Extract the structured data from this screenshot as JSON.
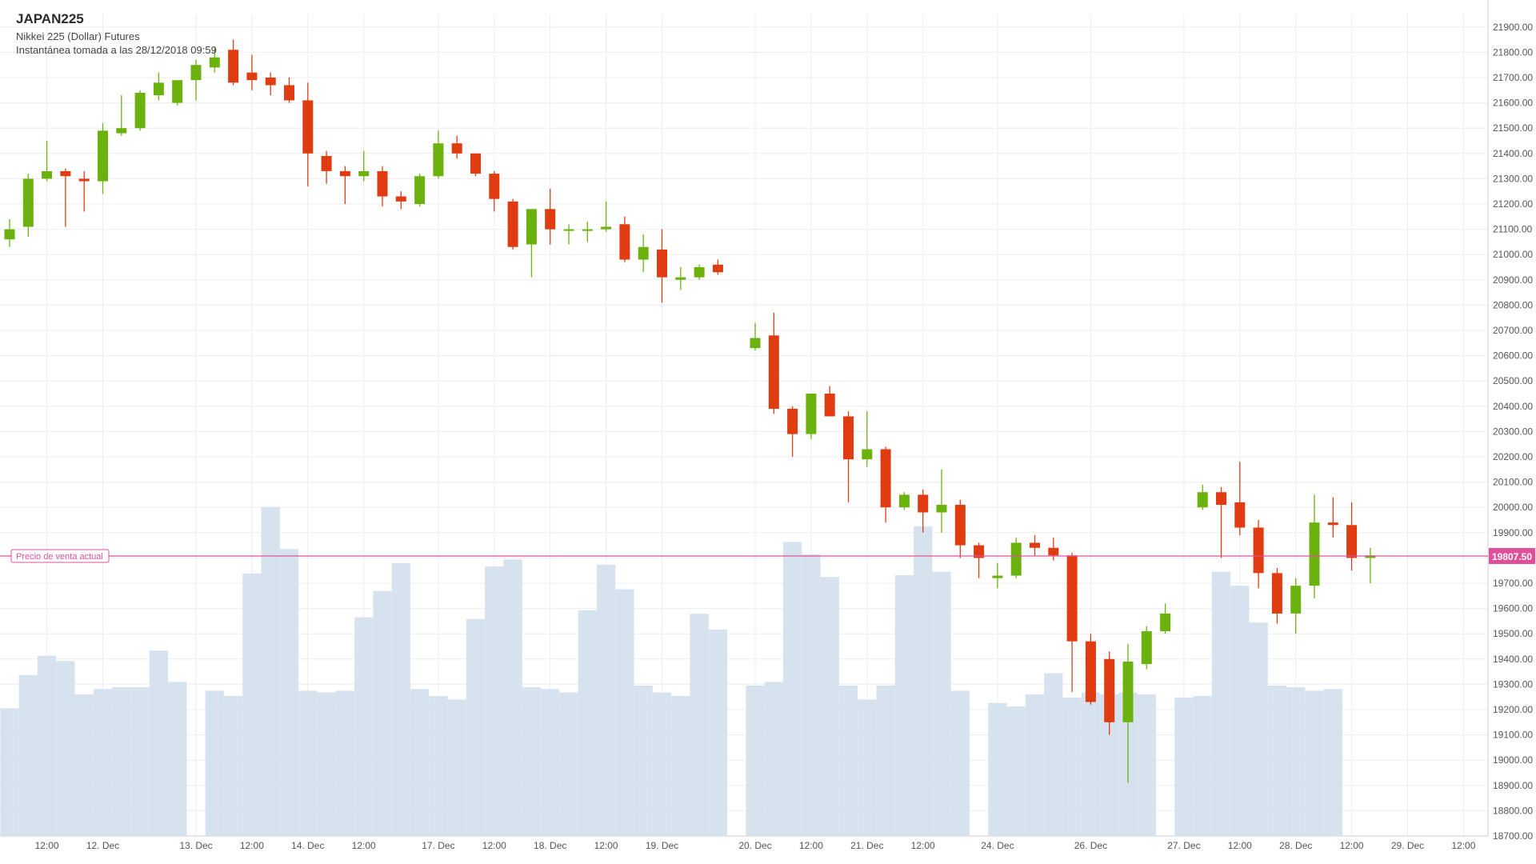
{
  "header": {
    "symbol": "JAPAN225",
    "description": "Nikkei 225 (Dollar) Futures",
    "snapshot": "Instantánea tomada a las 28/12/2018 09:59"
  },
  "current_price": {
    "label": "Precio de venta actual",
    "value_label": "19807.50",
    "value": 19807.5,
    "color": "#e0509a"
  },
  "colors": {
    "up": "#6cb20f",
    "down": "#e03c12",
    "volume": "#d6e3ee",
    "grid": "#ececf2"
  },
  "chart_data": {
    "type": "candlestick",
    "title": "",
    "ylim": [
      18700,
      21950
    ],
    "y_ticks": [
      "18700.00",
      "18800.00",
      "18900.00",
      "19000.00",
      "19100.00",
      "19200.00",
      "19300.00",
      "19400.00",
      "19500.00",
      "19600.00",
      "19700.00",
      "19800.00",
      "19900.00",
      "20000.00",
      "20100.00",
      "20200.00",
      "20300.00",
      "20400.00",
      "20500.00",
      "20600.00",
      "20700.00",
      "20800.00",
      "20900.00",
      "21000.00",
      "21100.00",
      "21200.00",
      "21300.00",
      "21400.00",
      "21500.00",
      "21600.00",
      "21700.00",
      "21800.00",
      "21900.00"
    ],
    "x_ticks": [
      {
        "label": "12:00",
        "i": 2
      },
      {
        "label": "12. Dec",
        "i": 5
      },
      {
        "label": "13. Dec",
        "i": 10
      },
      {
        "label": "12:00",
        "i": 13
      },
      {
        "label": "14. Dec",
        "i": 16
      },
      {
        "label": "12:00",
        "i": 19
      },
      {
        "label": "17. Dec",
        "i": 23
      },
      {
        "label": "12:00",
        "i": 26
      },
      {
        "label": "18. Dec",
        "i": 29
      },
      {
        "label": "12:00",
        "i": 32
      },
      {
        "label": "19. Dec",
        "i": 35
      },
      {
        "label": "20. Dec",
        "i": 40
      },
      {
        "label": "12:00",
        "i": 43
      },
      {
        "label": "21. Dec",
        "i": 46
      },
      {
        "label": "12:00",
        "i": 49
      },
      {
        "label": "24. Dec",
        "i": 53
      },
      {
        "label": "26. Dec",
        "i": 58
      },
      {
        "label": "27. Dec",
        "i": 63
      },
      {
        "label": "12:00",
        "i": 66
      },
      {
        "label": "28. Dec",
        "i": 69
      },
      {
        "label": "12:00",
        "i": 72
      },
      {
        "label": "29. Dec",
        "i": 75
      },
      {
        "label": "12:00",
        "i": 78
      }
    ],
    "candles": [
      {
        "o": 21060,
        "h": 21140,
        "l": 21030,
        "c": 21100
      },
      {
        "o": 21110,
        "h": 21320,
        "l": 21070,
        "c": 21300
      },
      {
        "o": 21300,
        "h": 21450,
        "l": 21290,
        "c": 21330
      },
      {
        "o": 21330,
        "h": 21340,
        "l": 21110,
        "c": 21310
      },
      {
        "o": 21300,
        "h": 21330,
        "l": 21170,
        "c": 21290
      },
      {
        "o": 21290,
        "h": 21520,
        "l": 21240,
        "c": 21490
      },
      {
        "o": 21480,
        "h": 21630,
        "l": 21470,
        "c": 21500
      },
      {
        "o": 21500,
        "h": 21650,
        "l": 21490,
        "c": 21640
      },
      {
        "o": 21630,
        "h": 21720,
        "l": 21610,
        "c": 21680
      },
      {
        "o": 21600,
        "h": 21680,
        "l": 21590,
        "c": 21690
      },
      {
        "o": 21690,
        "h": 21770,
        "l": 21610,
        "c": 21750
      },
      {
        "o": 21740,
        "h": 21820,
        "l": 21720,
        "c": 21780
      },
      {
        "o": 21810,
        "h": 21850,
        "l": 21670,
        "c": 21680
      },
      {
        "o": 21720,
        "h": 21790,
        "l": 21650,
        "c": 21690
      },
      {
        "o": 21700,
        "h": 21720,
        "l": 21630,
        "c": 21670
      },
      {
        "o": 21670,
        "h": 21700,
        "l": 21600,
        "c": 21610
      },
      {
        "o": 21610,
        "h": 21680,
        "l": 21270,
        "c": 21400
      },
      {
        "o": 21390,
        "h": 21410,
        "l": 21280,
        "c": 21330
      },
      {
        "o": 21330,
        "h": 21350,
        "l": 21200,
        "c": 21310
      },
      {
        "o": 21310,
        "h": 21410,
        "l": 21290,
        "c": 21330
      },
      {
        "o": 21330,
        "h": 21350,
        "l": 21190,
        "c": 21230
      },
      {
        "o": 21230,
        "h": 21250,
        "l": 21180,
        "c": 21210
      },
      {
        "o": 21200,
        "h": 21320,
        "l": 21190,
        "c": 21310
      },
      {
        "o": 21310,
        "h": 21490,
        "l": 21300,
        "c": 21440
      },
      {
        "o": 21440,
        "h": 21470,
        "l": 21380,
        "c": 21400
      },
      {
        "o": 21400,
        "h": 21400,
        "l": 21310,
        "c": 21320
      },
      {
        "o": 21320,
        "h": 21330,
        "l": 21170,
        "c": 21220
      },
      {
        "o": 21210,
        "h": 21220,
        "l": 21020,
        "c": 21030
      },
      {
        "o": 21040,
        "h": 21180,
        "l": 20910,
        "c": 21180
      },
      {
        "o": 21180,
        "h": 21260,
        "l": 21040,
        "c": 21100
      },
      {
        "o": 21100,
        "h": 21120,
        "l": 21040,
        "c": 21100
      },
      {
        "o": 21100,
        "h": 21130,
        "l": 21050,
        "c": 21100
      },
      {
        "o": 21100,
        "h": 21210,
        "l": 21090,
        "c": 21110
      },
      {
        "o": 21120,
        "h": 21150,
        "l": 20970,
        "c": 20980
      },
      {
        "o": 20980,
        "h": 21080,
        "l": 20930,
        "c": 21030
      },
      {
        "o": 21020,
        "h": 21100,
        "l": 20810,
        "c": 20910
      },
      {
        "o": 20900,
        "h": 20950,
        "l": 20860,
        "c": 20910
      },
      {
        "o": 20910,
        "h": 20960,
        "l": 20900,
        "c": 20950
      },
      {
        "o": 20960,
        "h": 20980,
        "l": 20920,
        "c": 20930
      },
      null,
      {
        "o": 20630,
        "h": 20730,
        "l": 20620,
        "c": 20670
      },
      {
        "o": 20680,
        "h": 20770,
        "l": 20370,
        "c": 20390
      },
      {
        "o": 20390,
        "h": 20400,
        "l": 20200,
        "c": 20290
      },
      {
        "o": 20290,
        "h": 20440,
        "l": 20270,
        "c": 20450
      },
      {
        "o": 20450,
        "h": 20480,
        "l": 20360,
        "c": 20360
      },
      {
        "o": 20360,
        "h": 20380,
        "l": 20020,
        "c": 20190
      },
      {
        "o": 20190,
        "h": 20380,
        "l": 20160,
        "c": 20230
      },
      {
        "o": 20230,
        "h": 20240,
        "l": 19940,
        "c": 20000
      },
      {
        "o": 20000,
        "h": 20060,
        "l": 19990,
        "c": 20050
      },
      {
        "o": 20050,
        "h": 20070,
        "l": 19900,
        "c": 19980
      },
      {
        "o": 19980,
        "h": 20150,
        "l": 19900,
        "c": 20010
      },
      {
        "o": 20010,
        "h": 20030,
        "l": 19800,
        "c": 19850
      },
      {
        "o": 19850,
        "h": 19860,
        "l": 19720,
        "c": 19800
      },
      {
        "o": 19720,
        "h": 19780,
        "l": 19680,
        "c": 19730
      },
      {
        "o": 19730,
        "h": 19880,
        "l": 19720,
        "c": 19860
      },
      {
        "o": 19860,
        "h": 19890,
        "l": 19810,
        "c": 19840
      },
      {
        "o": 19840,
        "h": 19880,
        "l": 19790,
        "c": 19810
      },
      {
        "o": 19810,
        "h": 19820,
        "l": 19270,
        "c": 19470
      },
      {
        "o": 19470,
        "h": 19500,
        "l": 19220,
        "c": 19230
      },
      {
        "o": 19400,
        "h": 19430,
        "l": 19100,
        "c": 19150
      },
      {
        "o": 19150,
        "h": 19460,
        "l": 18910,
        "c": 19390
      },
      {
        "o": 19380,
        "h": 19530,
        "l": 19360,
        "c": 19510
      },
      {
        "o": 19510,
        "h": 19620,
        "l": 19500,
        "c": 19580
      },
      null,
      {
        "o": 20000,
        "h": 20090,
        "l": 19990,
        "c": 20060
      },
      {
        "o": 20060,
        "h": 20080,
        "l": 19800,
        "c": 20010
      },
      {
        "o": 20020,
        "h": 20180,
        "l": 19890,
        "c": 19920
      },
      {
        "o": 19920,
        "h": 19950,
        "l": 19680,
        "c": 19740
      },
      {
        "o": 19740,
        "h": 19760,
        "l": 19540,
        "c": 19580
      },
      {
        "o": 19580,
        "h": 19720,
        "l": 19500,
        "c": 19690
      },
      {
        "o": 19690,
        "h": 20050,
        "l": 19640,
        "c": 19940
      },
      {
        "o": 19940,
        "h": 20040,
        "l": 19880,
        "c": 19930
      },
      {
        "o": 19930,
        "h": 20020,
        "l": 19750,
        "c": 19800
      },
      {
        "o": 19800,
        "h": 19840,
        "l": 19700,
        "c": 19810
      }
    ],
    "volume": [
      730,
      920,
      1030,
      1000,
      810,
      840,
      850,
      850,
      1060,
      880,
      null,
      830,
      800,
      1500,
      1880,
      1640,
      830,
      820,
      830,
      1250,
      1400,
      1560,
      840,
      800,
      780,
      1240,
      1540,
      1580,
      850,
      840,
      820,
      1290,
      1550,
      1410,
      860,
      820,
      800,
      1270,
      1180,
      null,
      860,
      880,
      1680,
      1610,
      1480,
      860,
      780,
      860,
      1490,
      1770,
      1510,
      830,
      null,
      760,
      740,
      810,
      930,
      790,
      820,
      810,
      820,
      810,
      null,
      790,
      800,
      1510,
      1430,
      1220,
      860,
      850,
      830,
      840,
      null,
      null,
      null,
      null,
      null,
      null,
      null,
      null,
      null
    ],
    "volume_ylim": [
      0,
      2400
    ]
  }
}
